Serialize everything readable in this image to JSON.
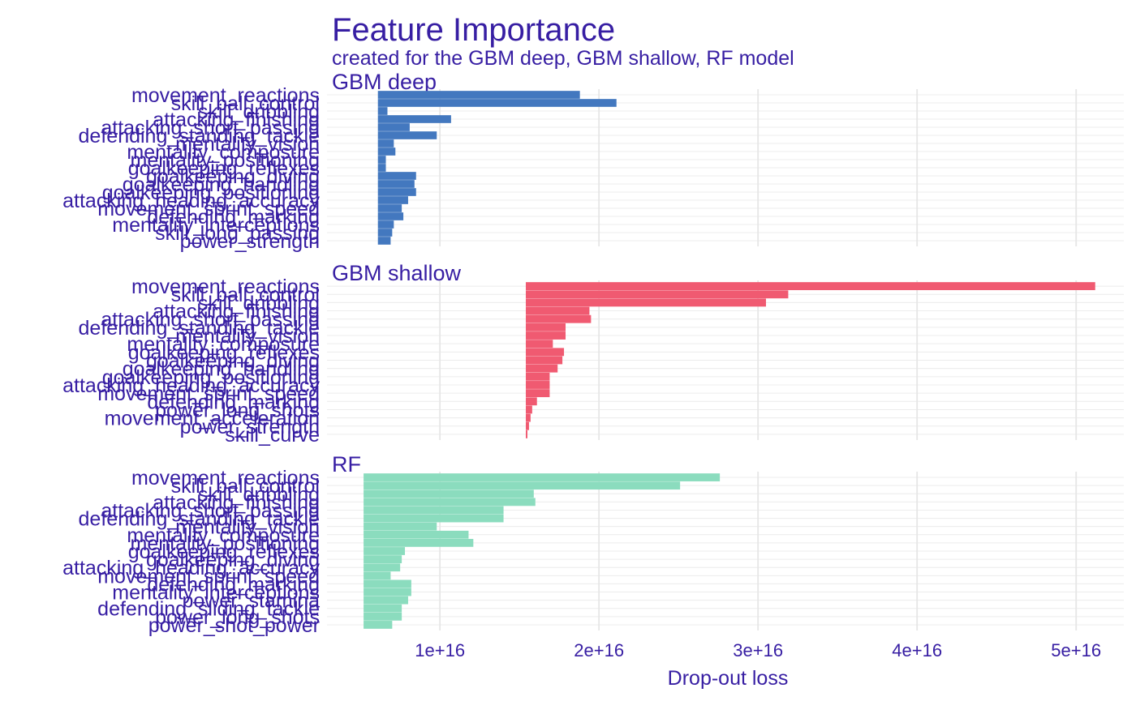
{
  "chart_data": {
    "type": "bar",
    "orientation": "horizontal",
    "title": "Feature Importance",
    "subtitle": "created for the GBM deep, GBM shallow, RF model",
    "xlabel": "Drop-out loss",
    "x_ticks": [
      {
        "value": 10000000000000000,
        "label": "1e+16"
      },
      {
        "value": 20000000000000000,
        "label": "2e+16"
      },
      {
        "value": 30000000000000000,
        "label": "3e+16"
      },
      {
        "value": 40000000000000000,
        "label": "4e+16"
      },
      {
        "value": 50000000000000000,
        "label": "5e+16"
      }
    ],
    "xlim": [
      2900000000000000,
      53000000000000000
    ],
    "grid": true,
    "panels": [
      {
        "name": "GBM deep",
        "color": "#4378bf",
        "baseline": 6100000000000000,
        "features": [
          "movement_reactions",
          "skill_ball_control",
          "skill_dribbling",
          "attacking_finishing",
          "attacking_short_passing",
          "defending_standing_tackle",
          "mentality_vision",
          "mentality_composure",
          "mentality_positioning",
          "goalkeeping_reflexes",
          "goalkeeping_diving",
          "goalkeeping_handling",
          "goalkeeping_positioning",
          "attacking_heading_accuracy",
          "movement_sprint_speed",
          "defending_marking",
          "mentality_interceptions",
          "skill_long_passing",
          "power_strength"
        ],
        "values": [
          18800000000000000,
          21100000000000000,
          6700000000000000,
          10700000000000000,
          8100000000000000,
          9800000000000000,
          7100000000000000,
          7200000000000000,
          6600000000000000,
          6600000000000000,
          8500000000000000,
          8400000000000000,
          8500000000000000,
          8000000000000000,
          7600000000000000,
          7700000000000000,
          7100000000000000,
          7000000000000000,
          6900000000000000
        ]
      },
      {
        "name": "GBM shallow",
        "color": "#f05a71",
        "baseline": 15400000000000000,
        "features": [
          "movement_reactions",
          "skill_ball_control",
          "skill_dribbling",
          "attacking_finishing",
          "attacking_short_passing",
          "defending_standing_tackle",
          "mentality_vision",
          "mentality_composure",
          "goalkeeping_reflexes",
          "goalkeeping_diving",
          "goalkeeping_handling",
          "goalkeeping_positioning",
          "attacking_heading_accuracy",
          "movement_sprint_speed",
          "defending_marking",
          "power_long_shots",
          "movement_acceleration",
          "power_strength",
          "skill_curve"
        ],
        "values": [
          51200000000000000,
          31900000000000000,
          30500000000000000,
          19400000000000000,
          19500000000000000,
          17900000000000000,
          17900000000000000,
          17100000000000000,
          17800000000000000,
          17700000000000000,
          17400000000000000,
          16900000000000000,
          16900000000000000,
          16900000000000000,
          16100000000000000,
          15800000000000000,
          15700000000000000,
          15600000000000000,
          15500000000000000
        ]
      },
      {
        "name": "RF",
        "color": "#8bdcbe",
        "baseline": 5200000000000000,
        "features": [
          "movement_reactions",
          "skill_ball_control",
          "skill_dribbling",
          "attacking_finishing",
          "attacking_short_passing",
          "defending_standing_tackle",
          "mentality_vision",
          "mentality_composure",
          "mentality_positioning",
          "goalkeeping_reflexes",
          "goalkeeping_diving",
          "attacking_heading_accuracy",
          "movement_sprint_speed",
          "defending_marking",
          "mentality_interceptions",
          "power_stamina",
          "defending_sliding_tackle",
          "power_long_shots",
          "power_shot_power"
        ],
        "values": [
          27600000000000000,
          25100000000000000,
          15900000000000000,
          16000000000000000,
          14000000000000000,
          14000000000000000,
          9800000000000000,
          11800000000000000,
          12100000000000000,
          7800000000000000,
          7600000000000000,
          7500000000000000,
          6900000000000000,
          8200000000000000,
          8200000000000000,
          8000000000000000,
          7600000000000000,
          7600000000000000,
          7000000000000000
        ]
      }
    ]
  }
}
